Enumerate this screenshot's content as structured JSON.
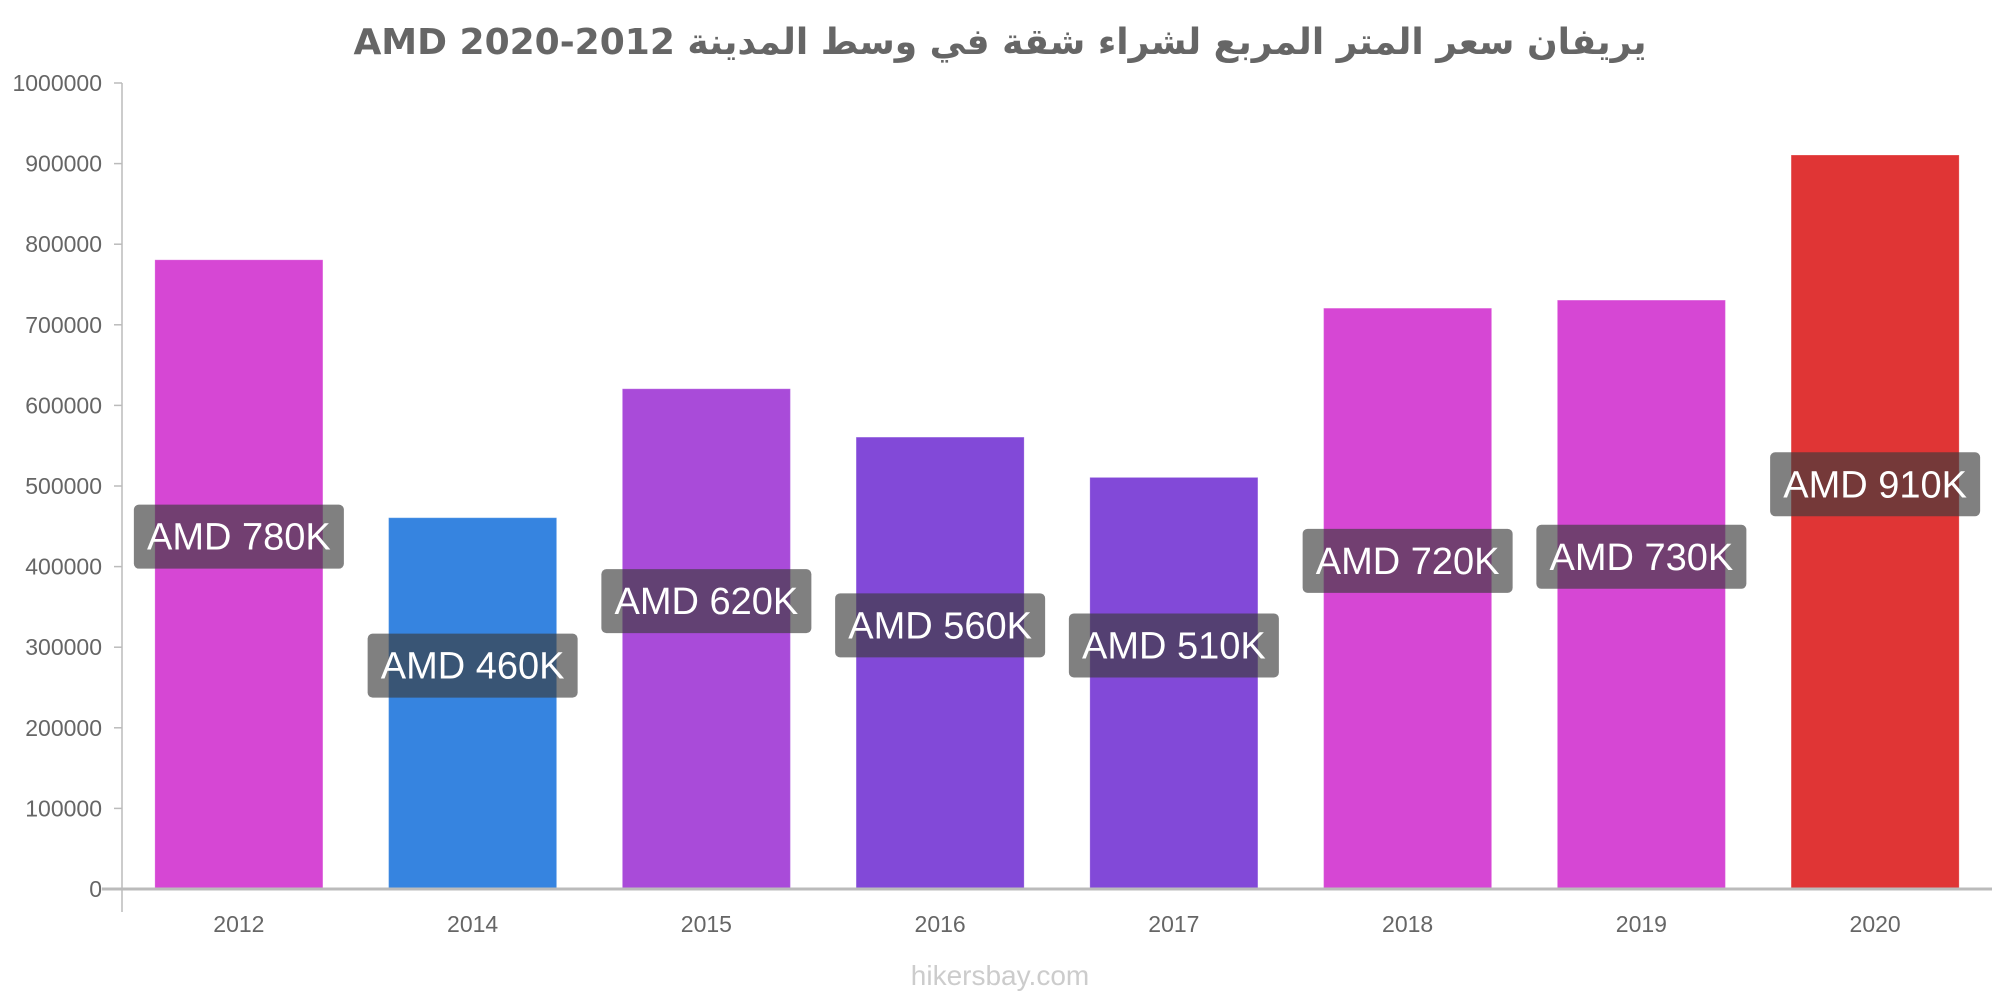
{
  "chart_data": {
    "type": "bar",
    "title": "يريفان سعر المتر المربع لشراء شقة في وسط المدينة AMD 2020-2012",
    "xlabel": "",
    "ylabel": "",
    "categories": [
      "2012",
      "2014",
      "2015",
      "2016",
      "2017",
      "2018",
      "2019",
      "2020"
    ],
    "values": [
      780000,
      460000,
      620000,
      560000,
      510000,
      720000,
      730000,
      910000
    ],
    "data_labels": [
      "AMD 780K",
      "AMD 460K",
      "AMD 620K",
      "AMD 560K",
      "AMD 510K",
      "AMD 720K",
      "AMD 730K",
      "AMD 910K"
    ],
    "colors": [
      "#d647d4",
      "#3684e0",
      "#a94bd9",
      "#8249d8",
      "#8249d8",
      "#d647d4",
      "#d647d4",
      "#e03535"
    ],
    "ylim": [
      0,
      1000000
    ],
    "yticks": [
      "0",
      "100000",
      "200000",
      "300000",
      "400000",
      "500000",
      "600000",
      "700000",
      "800000",
      "900000",
      "1000000"
    ],
    "grid": false,
    "legend": "none"
  },
  "watermark": "hikersbay.com"
}
